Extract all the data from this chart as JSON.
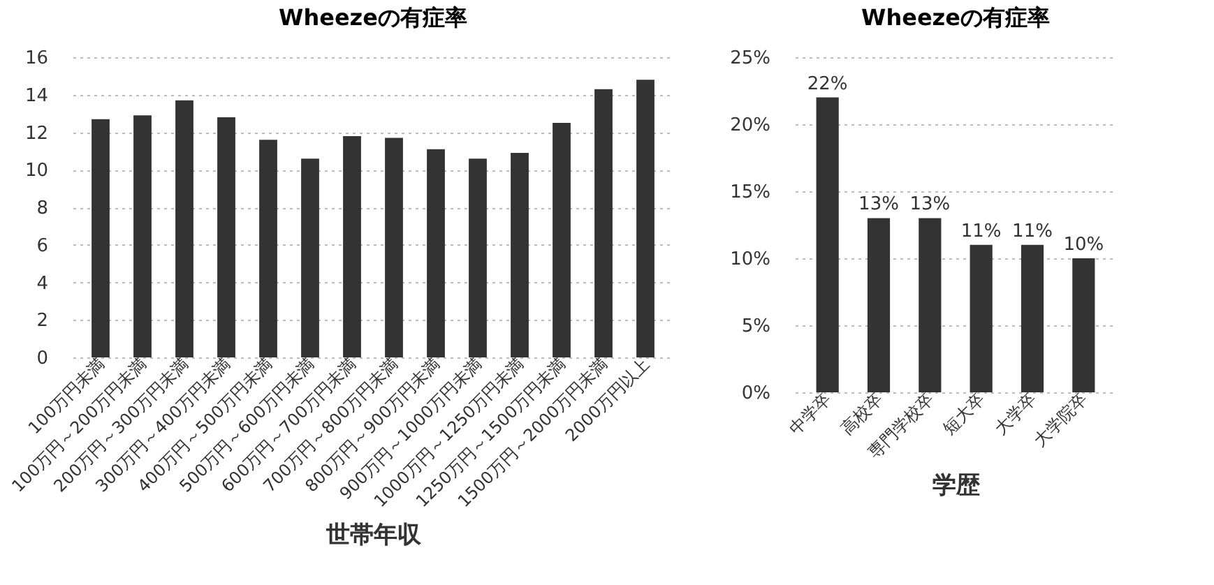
{
  "chart_data": [
    {
      "type": "bar",
      "title": "Wheezeの有症率",
      "xlabel": "世帯年収",
      "categories": [
        "100万円未満",
        "100万円～200万円未満",
        "200万円～300万円未満",
        "300万円～400万円未満",
        "400万円～500万円未満",
        "500万円～600万円未満",
        "600万円～700万円未満",
        "700万円～800万円未満",
        "800万円～900万円未満",
        "900万円～1000万円未満",
        "1000万円～1250万円未満",
        "1250万円～1500万円未満",
        "1500万円～2000万円未満",
        "2000万円以上"
      ],
      "values": [
        12.7,
        12.9,
        13.7,
        12.8,
        11.6,
        10.6,
        11.8,
        11.7,
        11.1,
        10.6,
        10.9,
        12.5,
        14.3,
        14.8
      ],
      "color": "#333333",
      "ylim": [
        0,
        16
      ],
      "yticks": [
        0,
        2,
        4,
        6,
        8,
        10,
        12,
        14,
        16
      ],
      "grid": "y"
    },
    {
      "type": "bar",
      "title": "Wheezeの有症率",
      "xlabel": "学歴",
      "categories": [
        "中学卒",
        "高校卒",
        "専門学校卒",
        "短大卒",
        "大学卒",
        "大学院卒"
      ],
      "values": [
        22,
        13,
        13,
        11,
        11,
        10
      ],
      "value_labels": [
        "22%",
        "13%",
        "13%",
        "11%",
        "11%",
        "10%"
      ],
      "color": "#333333",
      "ylim": [
        0,
        25
      ],
      "yticks": [
        {
          "value": 0,
          "label": "0%"
        },
        {
          "value": 5,
          "label": "5%"
        },
        {
          "value": 10,
          "label": "10%"
        },
        {
          "value": 15,
          "label": "15%"
        },
        {
          "value": 20,
          "label": "20%"
        },
        {
          "value": 25,
          "label": "25%"
        }
      ],
      "grid": "y"
    }
  ]
}
